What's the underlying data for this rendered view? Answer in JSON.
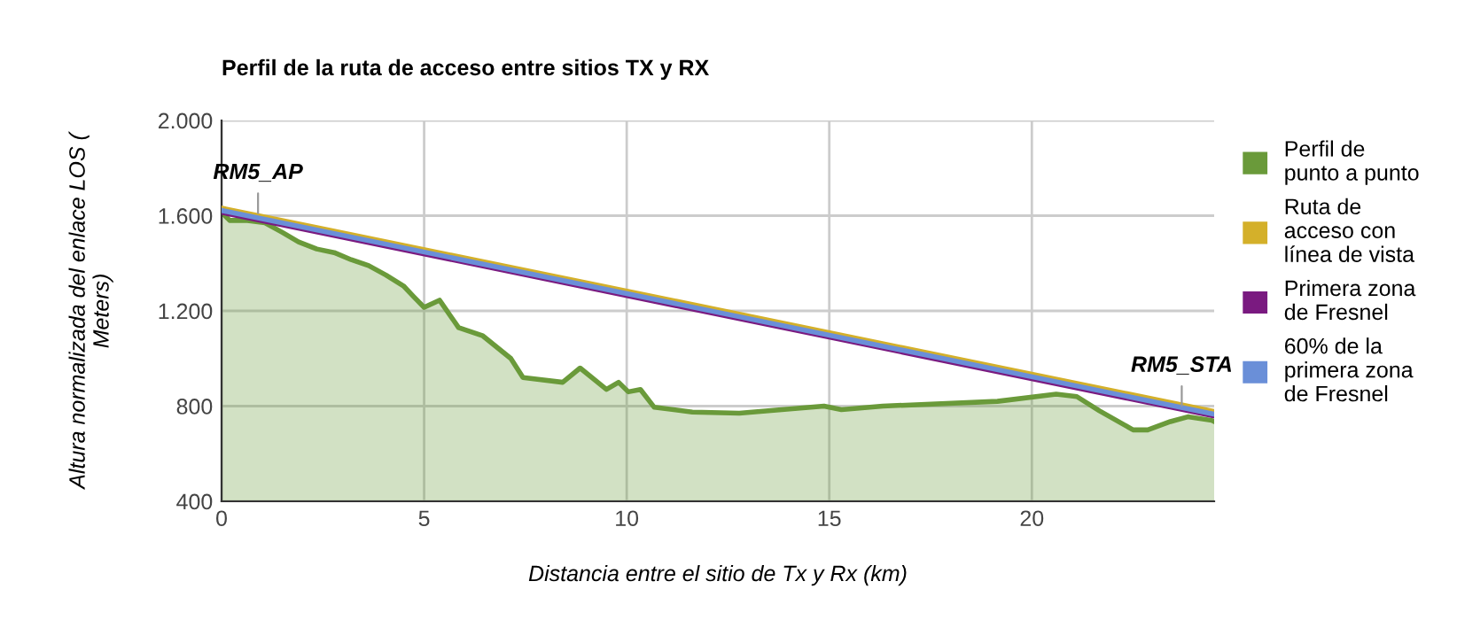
{
  "chart_data": {
    "type": "line",
    "title": "Perfil de la ruta de acceso entre sitios TX y RX",
    "xlabel": "Distancia entre el sitio de Tx y Rx (km)",
    "ylabel": "Altura normalizada del enlace LOS (\nMeters)",
    "xlim": [
      0,
      24.5
    ],
    "xticks": [
      0,
      5,
      10,
      15,
      20
    ],
    "ylim": [
      400,
      2000
    ],
    "yticks": [
      {
        "value": 400,
        "label": "400"
      },
      {
        "value": 800,
        "label": "800"
      },
      {
        "value": 1200,
        "label": "1.200"
      },
      {
        "value": 1600,
        "label": "1.600"
      },
      {
        "value": 2000,
        "label": "2.000"
      }
    ],
    "grid": true,
    "legend": "right",
    "marker": "none",
    "line_style": "solid",
    "annotations": [
      {
        "text": "RM5_AP",
        "x": 0.9,
        "y": 1590
      },
      {
        "text": "RM5_STA",
        "x": 23.7,
        "y": 780
      }
    ],
    "series": [
      {
        "name": "Perfil de\npunto a punto",
        "type": "area",
        "color": "#6a9a3a",
        "x": [
          0,
          0.2,
          0.64,
          1.07,
          1.5,
          1.9,
          2.35,
          2.78,
          3.2,
          3.63,
          4.06,
          4.49,
          4.74,
          5.0,
          5.38,
          5.85,
          6.45,
          7.14,
          7.44,
          8.42,
          8.85,
          9.5,
          9.8,
          10.04,
          10.34,
          10.68,
          11.62,
          12.78,
          14.87,
          15.3,
          16.32,
          19.15,
          20.6,
          21.11,
          21.67,
          22.5,
          22.86,
          23.42,
          23.85,
          24.44,
          24.5
        ],
        "values": [
          1615,
          1580,
          1580,
          1570,
          1530,
          1490,
          1460,
          1445,
          1415,
          1390,
          1350,
          1305,
          1260,
          1215,
          1245,
          1130,
          1095,
          1000,
          920,
          900,
          960,
          870,
          900,
          860,
          870,
          795,
          775,
          770,
          800,
          785,
          800,
          820,
          850,
          840,
          780,
          700,
          700,
          735,
          755,
          740,
          735
        ]
      },
      {
        "name": "Ruta de\nacceso con\nlínea de vista",
        "color": "#d4b02a",
        "x": [
          0,
          24.5
        ],
        "values": [
          1632,
          777
        ]
      },
      {
        "name": "Primera zona\nde Fresnel",
        "color": "#7a1a80",
        "x": [
          0,
          24.5
        ],
        "values": [
          1614,
          758
        ]
      },
      {
        "name": "60% de la\nprimera zona\nde Fresnel",
        "color": "#6a8fd8",
        "x": [
          0,
          24.5
        ],
        "values": [
          1622,
          766
        ]
      }
    ]
  }
}
